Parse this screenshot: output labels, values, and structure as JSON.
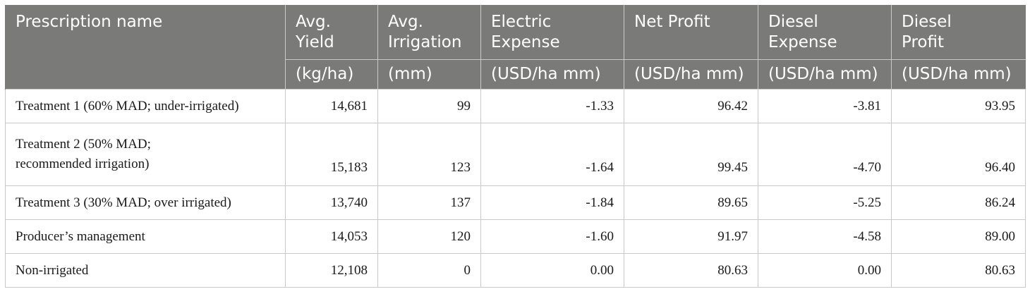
{
  "headers": [
    {
      "title": "Prescription name",
      "unit": ""
    },
    {
      "title": "Avg. Yield",
      "unit": "(kg/ha)"
    },
    {
      "title": "Avg. Irrigation",
      "unit": "(mm)"
    },
    {
      "title": "Electric Expense",
      "unit": "(USD/ha mm)"
    },
    {
      "title": "Net Profit",
      "unit": "(USD/ha mm)"
    },
    {
      "title": "Diesel Expense",
      "unit": "(USD/ha mm)"
    },
    {
      "title": "Diesel Profit",
      "unit": "(USD/ha mm)"
    }
  ],
  "header_title_lines": [
    [
      "Prescription name"
    ],
    [
      "Avg.",
      "Yield"
    ],
    [
      "Avg.",
      "Irrigation"
    ],
    [
      "Electric",
      "Expense"
    ],
    [
      "Net Profit"
    ],
    [
      "Diesel",
      "Expense"
    ],
    [
      "Diesel",
      "Profit"
    ]
  ],
  "rows": [
    {
      "name": "Treatment 1 (60% MAD; under-irrigated)",
      "name_lines": [
        "Treatment 1 (60% MAD; under-irrigated)"
      ],
      "values": [
        "14,681",
        "99",
        "-1.33",
        "96.42",
        "-3.81",
        "93.95"
      ]
    },
    {
      "name": "Treatment 2 (50% MAD; recommended irrigation)",
      "name_lines": [
        "Treatment 2 (50% MAD;",
        "recommended irrigation)"
      ],
      "values": [
        "15,183",
        "123",
        "-1.64",
        "99.45",
        "-4.70",
        "96.40"
      ]
    },
    {
      "name": "Treatment 3 (30% MAD; over irrigated)",
      "name_lines": [
        "Treatment 3 (30% MAD; over irrigated)"
      ],
      "values": [
        "13,740",
        "137",
        "-1.84",
        "89.65",
        "-5.25",
        "86.24"
      ]
    },
    {
      "name": "Producer’s management",
      "name_lines": [
        "Producer’s management"
      ],
      "values": [
        "14,053",
        "120",
        "-1.60",
        "91.97",
        "-4.58",
        "89.00"
      ]
    },
    {
      "name": "Non-irrigated",
      "name_lines": [
        "Non-irrigated"
      ],
      "values": [
        "12,108",
        "0",
        "0.00",
        "80.63",
        "0.00",
        "80.63"
      ]
    }
  ],
  "colors": {
    "header_bg": "#7a7b79",
    "header_text": "#ffffff",
    "grid_line": "#c9cac8"
  }
}
